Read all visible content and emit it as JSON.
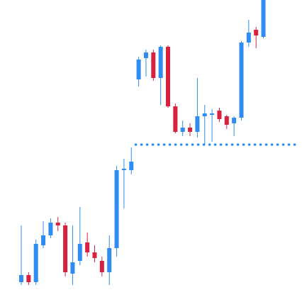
{
  "chart_data": {
    "type": "candlestick",
    "title": "",
    "xlabel": "",
    "ylabel": "",
    "grid": false,
    "legend": "none",
    "axes_visible": false,
    "ylim": [
      0,
      426
    ],
    "colors": {
      "up": "#2f8cf2",
      "down": "#d8213f",
      "level_line": "#2f8cf2"
    },
    "level_line": {
      "value": 222,
      "style": "dotted",
      "from_index": 16
    },
    "candles": [
      {
        "o": 28,
        "h": 108,
        "l": 24,
        "c": 38
      },
      {
        "o": 38,
        "h": 42,
        "l": 24,
        "c": 28
      },
      {
        "o": 28,
        "h": 88,
        "l": 24,
        "c": 82
      },
      {
        "o": 80,
        "h": 114,
        "l": 76,
        "c": 94
      },
      {
        "o": 94,
        "h": 118,
        "l": 90,
        "c": 112
      },
      {
        "o": 112,
        "h": 120,
        "l": 100,
        "c": 108
      },
      {
        "o": 108,
        "h": 112,
        "l": 36,
        "c": 42
      },
      {
        "o": 40,
        "h": 108,
        "l": 24,
        "c": 56
      },
      {
        "o": 58,
        "h": 134,
        "l": 52,
        "c": 82
      },
      {
        "o": 84,
        "h": 98,
        "l": 64,
        "c": 70
      },
      {
        "o": 70,
        "h": 80,
        "l": 56,
        "c": 62
      },
      {
        "o": 58,
        "h": 64,
        "l": 36,
        "c": 42
      },
      {
        "o": 42,
        "h": 94,
        "l": 24,
        "c": 76
      },
      {
        "o": 76,
        "h": 192,
        "l": 64,
        "c": 186
      },
      {
        "o": 186,
        "h": 202,
        "l": 132,
        "c": 188
      },
      {
        "o": 186,
        "h": 218,
        "l": 180,
        "c": 198
      },
      {
        "o": 314,
        "h": 346,
        "l": 304,
        "c": 342
      },
      {
        "o": 344,
        "h": 356,
        "l": 318,
        "c": 352
      },
      {
        "o": 352,
        "h": 356,
        "l": 312,
        "c": 316
      },
      {
        "o": 316,
        "h": 362,
        "l": 278,
        "c": 360
      },
      {
        "o": 360,
        "h": 362,
        "l": 274,
        "c": 276
      },
      {
        "o": 276,
        "h": 280,
        "l": 238,
        "c": 240
      },
      {
        "o": 240,
        "h": 256,
        "l": 234,
        "c": 246
      },
      {
        "o": 246,
        "h": 252,
        "l": 234,
        "c": 240
      },
      {
        "o": 240,
        "h": 316,
        "l": 232,
        "c": 262
      },
      {
        "o": 262,
        "h": 278,
        "l": 222,
        "c": 266
      },
      {
        "o": 264,
        "h": 272,
        "l": 226,
        "c": 266
      },
      {
        "o": 270,
        "h": 274,
        "l": 254,
        "c": 258
      },
      {
        "o": 262,
        "h": 264,
        "l": 244,
        "c": 250
      },
      {
        "o": 252,
        "h": 262,
        "l": 234,
        "c": 260
      },
      {
        "o": 260,
        "h": 368,
        "l": 256,
        "c": 366
      },
      {
        "o": 366,
        "h": 398,
        "l": 360,
        "c": 380
      },
      {
        "o": 384,
        "h": 388,
        "l": 358,
        "c": 376
      },
      {
        "o": 374,
        "h": 432,
        "l": 372,
        "c": 430
      }
    ]
  }
}
